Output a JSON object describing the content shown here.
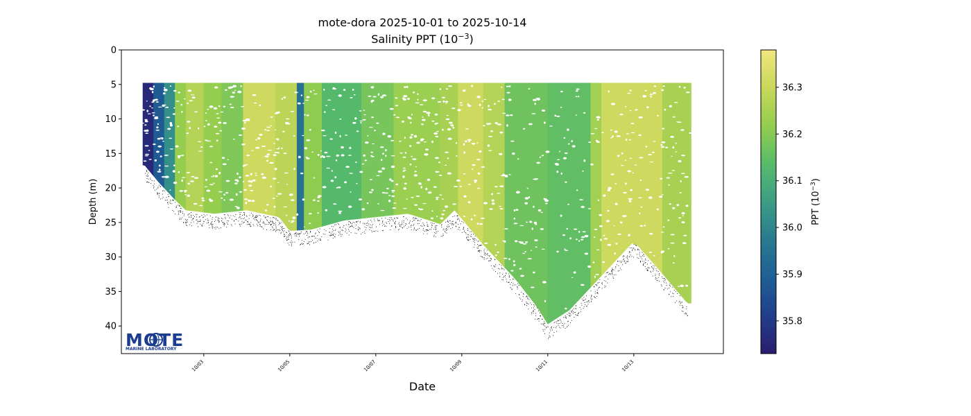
{
  "chart_data": {
    "type": "scatter",
    "title": "mote-dora 2025-10-01 to 2025-10-14",
    "subtitle_base": "Salinity PPT (10",
    "subtitle_exp": "−3",
    "subtitle_end": ")",
    "xlabel": "Date",
    "ylabel": "Depth (m)",
    "x_ticks": [
      "10/03",
      "10/05",
      "10/07",
      "10/09",
      "10/11",
      "10/13"
    ],
    "x_tick_values": [
      "2025-10-03",
      "2025-10-05",
      "2025-10-07",
      "2025-10-09",
      "2025-10-11",
      "2025-10-13"
    ],
    "xlim": [
      "2025-10-01T02:00",
      "2025-10-15T02:00"
    ],
    "y_ticks": [
      0,
      5,
      10,
      15,
      20,
      25,
      30,
      35,
      40
    ],
    "ylim": [
      44,
      0
    ],
    "y_inverted": true,
    "colorbar": {
      "label_base": "PPT (10",
      "label_exp": "−3",
      "label_end": ")",
      "ticks": [
        35.8,
        35.9,
        36.0,
        36.1,
        36.2,
        36.3
      ],
      "range": [
        35.73,
        36.38
      ],
      "colormap": [
        "#2b1d6e",
        "#213e8a",
        "#1f5f95",
        "#297a8e",
        "#3c9d85",
        "#57bb6a",
        "#93cd4f",
        "#c8d75b",
        "#f1e67f"
      ]
    },
    "bottom_depth_track": [
      {
        "date": "2025-10-01T15:00",
        "depth": 17.5
      },
      {
        "date": "2025-10-01T23:00",
        "depth": 20.0
      },
      {
        "date": "2025-10-02T08:00",
        "depth": 22.5
      },
      {
        "date": "2025-10-02T14:00",
        "depth": 24.0
      },
      {
        "date": "2025-10-03T06:00",
        "depth": 24.5
      },
      {
        "date": "2025-10-04T00:00",
        "depth": 24.0
      },
      {
        "date": "2025-10-04T18:00",
        "depth": 25.0
      },
      {
        "date": "2025-10-05T00:00",
        "depth": 27.0
      },
      {
        "date": "2025-10-05T12:00",
        "depth": 26.8
      },
      {
        "date": "2025-10-06T06:00",
        "depth": 25.5
      },
      {
        "date": "2025-10-07T00:00",
        "depth": 25.0
      },
      {
        "date": "2025-10-07T18:00",
        "depth": 24.5
      },
      {
        "date": "2025-10-08T12:00",
        "depth": 26.0
      },
      {
        "date": "2025-10-08T20:00",
        "depth": 24.0
      },
      {
        "date": "2025-10-09T12:00",
        "depth": 29.0
      },
      {
        "date": "2025-10-10T06:00",
        "depth": 34.0
      },
      {
        "date": "2025-10-10T18:00",
        "depth": 38.0
      },
      {
        "date": "2025-10-11T00:00",
        "depth": 40.5
      },
      {
        "date": "2025-10-11T12:00",
        "depth": 38.5
      },
      {
        "date": "2025-10-12T06:00",
        "depth": 33.5
      },
      {
        "date": "2025-10-13T00:00",
        "depth": 28.5
      },
      {
        "date": "2025-10-13T12:00",
        "depth": 32.0
      },
      {
        "date": "2025-10-14T06:00",
        "depth": 37.5
      }
    ],
    "profile_segments": [
      {
        "start": "2025-10-01T14:00",
        "end": "2025-10-01T20:00",
        "salinity": 35.76
      },
      {
        "start": "2025-10-01T20:00",
        "end": "2025-10-02T02:00",
        "salinity": 35.88
      },
      {
        "start": "2025-10-02T02:00",
        "end": "2025-10-02T08:00",
        "salinity": 36.02
      },
      {
        "start": "2025-10-02T08:00",
        "end": "2025-10-02T14:00",
        "salinity": 36.22
      },
      {
        "start": "2025-10-02T14:00",
        "end": "2025-10-03T00:00",
        "salinity": 36.27
      },
      {
        "start": "2025-10-03T00:00",
        "end": "2025-10-03T10:00",
        "salinity": 36.22
      },
      {
        "start": "2025-10-03T10:00",
        "end": "2025-10-03T22:00",
        "salinity": 36.19
      },
      {
        "start": "2025-10-03T22:00",
        "end": "2025-10-04T16:00",
        "salinity": 36.31
      },
      {
        "start": "2025-10-04T16:00",
        "end": "2025-10-05T04:00",
        "salinity": 36.28
      },
      {
        "start": "2025-10-05T04:00",
        "end": "2025-10-05T08:00",
        "salinity": 35.95
      },
      {
        "start": "2025-10-05T08:00",
        "end": "2025-10-05T18:00",
        "salinity": 36.21
      },
      {
        "start": "2025-10-05T18:00",
        "end": "2025-10-06T16:00",
        "salinity": 36.13
      },
      {
        "start": "2025-10-06T16:00",
        "end": "2025-10-07T10:00",
        "salinity": 36.18
      },
      {
        "start": "2025-10-07T10:00",
        "end": "2025-10-08T12:00",
        "salinity": 36.23
      },
      {
        "start": "2025-10-08T12:00",
        "end": "2025-10-08T22:00",
        "salinity": 36.25
      },
      {
        "start": "2025-10-08T22:00",
        "end": "2025-10-09T12:00",
        "salinity": 36.31
      },
      {
        "start": "2025-10-09T12:00",
        "end": "2025-10-10T00:00",
        "salinity": 36.27
      },
      {
        "start": "2025-10-10T00:00",
        "end": "2025-10-11T00:00",
        "salinity": 36.17
      },
      {
        "start": "2025-10-11T00:00",
        "end": "2025-10-12T00:00",
        "salinity": 36.15
      },
      {
        "start": "2025-10-12T00:00",
        "end": "2025-10-12T06:00",
        "salinity": 36.24
      },
      {
        "start": "2025-10-12T06:00",
        "end": "2025-10-13T16:00",
        "salinity": 36.31
      },
      {
        "start": "2025-10-13T16:00",
        "end": "2025-10-14T08:00",
        "salinity": 36.25
      }
    ]
  },
  "logo": {
    "name": "MOTE",
    "subtitle": "MARINE LABORATORY",
    "icon": "globe-icon"
  }
}
